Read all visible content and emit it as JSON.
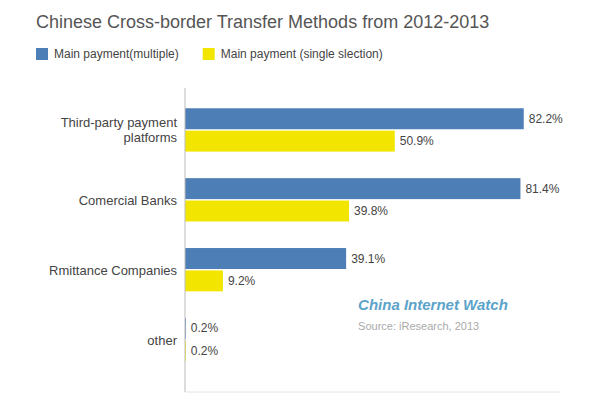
{
  "chart_data": {
    "type": "bar",
    "orientation": "horizontal",
    "title": "Chinese Cross-border Transfer Methods from 2012-2013",
    "categories": [
      "other",
      "Rmittance Companies",
      "Comercial Banks",
      "Third-party payment\nplatforms"
    ],
    "series": [
      {
        "name": "Main payment(multiple)",
        "color": "#4d7eb5",
        "values": [
          0.2,
          39.1,
          81.4,
          82.2
        ],
        "value_labels": [
          "0.2%",
          "39.1%",
          "81.4%",
          "82.2%"
        ]
      },
      {
        "name": "Main payment (single slection)",
        "color": "#f2e600",
        "values": [
          0.2,
          9.2,
          39.8,
          50.9
        ],
        "value_labels": [
          "0.2%",
          "9.2%",
          "39.8%",
          "50.9%"
        ]
      }
    ],
    "xlim": [
      0,
      91
    ],
    "data_labels": true,
    "tick_labels": "y",
    "grid": false,
    "legend": "upper left",
    "annotations": [
      "China Internet Watch",
      "Source: iResearch,  2013"
    ]
  }
}
